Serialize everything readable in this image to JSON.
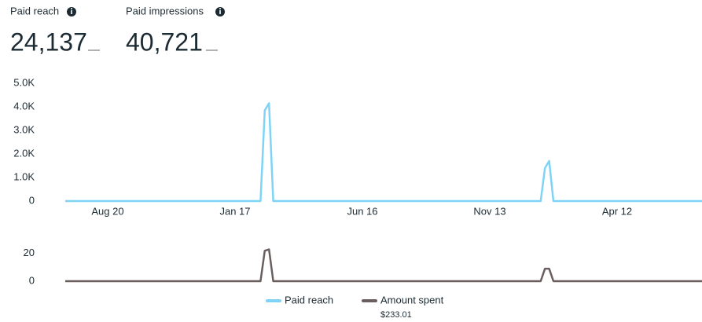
{
  "metrics": [
    {
      "label": "Paid reach",
      "value": "24,137"
    },
    {
      "label": "Paid impressions",
      "value": "40,721"
    }
  ],
  "chart_data": [
    {
      "type": "line",
      "categories": [
        null,
        null,
        null,
        null,
        null,
        null,
        null,
        null,
        null,
        null,
        "Aug 20",
        null,
        null,
        null,
        null,
        null,
        null,
        null,
        null,
        null,
        null,
        null,
        null,
        null,
        null,
        null,
        null,
        null,
        null,
        null,
        null,
        null,
        null,
        null,
        null,
        null,
        null,
        null,
        null,
        null,
        "Jan 17",
        null,
        null,
        null,
        null,
        null,
        null,
        null,
        null,
        null,
        null,
        null,
        null,
        null,
        null,
        null,
        null,
        null,
        null,
        null,
        null,
        null,
        null,
        null,
        null,
        null,
        null,
        null,
        null,
        null,
        "Jun 16",
        null,
        null,
        null,
        null,
        null,
        null,
        null,
        null,
        null,
        null,
        null,
        null,
        null,
        null,
        null,
        null,
        null,
        null,
        null,
        null,
        null,
        null,
        null,
        null,
        null,
        null,
        null,
        null,
        null,
        "Nov 13",
        null,
        null,
        null,
        null,
        null,
        null,
        null,
        null,
        null,
        null,
        null,
        null,
        null,
        null,
        null,
        null,
        null,
        null,
        null,
        null,
        null,
        null,
        null,
        null,
        null,
        null,
        null,
        null,
        null,
        "Apr 12",
        null,
        null,
        null,
        null,
        null,
        null,
        null,
        null,
        null,
        null,
        null,
        null,
        null,
        null,
        null,
        null,
        null,
        null,
        null,
        null
      ],
      "series": [
        {
          "name": "Paid reach",
          "color": "#7fd3f7",
          "values": [
            0,
            0,
            0,
            0,
            0,
            0,
            0,
            0,
            0,
            0,
            0,
            0,
            0,
            0,
            0,
            0,
            0,
            0,
            0,
            0,
            0,
            0,
            0,
            0,
            0,
            0,
            0,
            0,
            0,
            0,
            0,
            0,
            0,
            0,
            0,
            0,
            0,
            0,
            0,
            0,
            0,
            0,
            0,
            0,
            0,
            0,
            0,
            3850,
            4150,
            0,
            0,
            0,
            0,
            0,
            0,
            0,
            0,
            0,
            0,
            0,
            0,
            0,
            0,
            0,
            0,
            0,
            0,
            0,
            0,
            0,
            0,
            0,
            0,
            0,
            0,
            0,
            0,
            0,
            0,
            0,
            0,
            0,
            0,
            0,
            0,
            0,
            0,
            0,
            0,
            0,
            0,
            0,
            0,
            0,
            0,
            0,
            0,
            0,
            0,
            0,
            0,
            0,
            0,
            0,
            0,
            0,
            0,
            0,
            0,
            0,
            0,
            0,
            0,
            1400,
            1700,
            0,
            0,
            0,
            0,
            0,
            0,
            0,
            0,
            0,
            0,
            0,
            0,
            0,
            0,
            0,
            0,
            0,
            0,
            0,
            0,
            0,
            0,
            0,
            0,
            0,
            0,
            0,
            0,
            0,
            0,
            0,
            0,
            0,
            0,
            0,
            0
          ]
        }
      ],
      "ylim": [
        0,
        5000
      ],
      "yticks": [
        0,
        {
          "value": 1000,
          "label": "1.0K"
        },
        {
          "value": 2000,
          "label": "2.0K"
        },
        {
          "value": 3000,
          "label": "3.0K"
        },
        {
          "value": 4000,
          "label": "4.0K"
        },
        {
          "value": 5000,
          "label": "5.0K"
        }
      ]
    },
    {
      "type": "line",
      "series": [
        {
          "name": "Amount spent",
          "color": "#6b5e5e",
          "total": "$233.01",
          "values": [
            0,
            0,
            0,
            0,
            0,
            0,
            0,
            0,
            0,
            0,
            0,
            0,
            0,
            0,
            0,
            0,
            0,
            0,
            0,
            0,
            0,
            0,
            0,
            0,
            0,
            0,
            0,
            0,
            0,
            0,
            0,
            0,
            0,
            0,
            0,
            0,
            0,
            0,
            0,
            0,
            0,
            0,
            0,
            0,
            0,
            0,
            0,
            22,
            23,
            0,
            0,
            0,
            0,
            0,
            0,
            0,
            0,
            0,
            0,
            0,
            0,
            0,
            0,
            0,
            0,
            0,
            0,
            0,
            0,
            0,
            0,
            0,
            0,
            0,
            0,
            0,
            0,
            0,
            0,
            0,
            0,
            0,
            0,
            0,
            0,
            0,
            0,
            0,
            0,
            0,
            0,
            0,
            0,
            0,
            0,
            0,
            0,
            0,
            0,
            0,
            0,
            0,
            0,
            0,
            0,
            0,
            0,
            0,
            0,
            0,
            0,
            0,
            0,
            9,
            9,
            0,
            0,
            0,
            0,
            0,
            0,
            0,
            0,
            0,
            0,
            0,
            0,
            0,
            0,
            0,
            0,
            0,
            0,
            0,
            0,
            0,
            0,
            0,
            0,
            0,
            0,
            0,
            0,
            0,
            0,
            0,
            0,
            0,
            0,
            0,
            0
          ]
        }
      ],
      "ylim": [
        0,
        25
      ],
      "yticks": [
        0,
        20
      ]
    }
  ]
}
